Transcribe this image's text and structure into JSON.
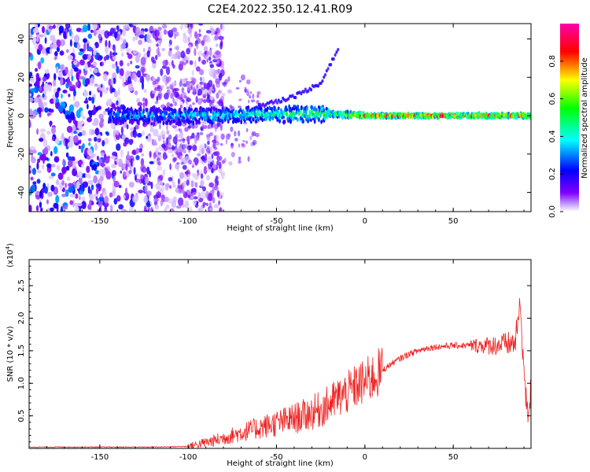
{
  "figure": {
    "title": "C2E4.2022.350.12.41.R09"
  },
  "chart_data": [
    {
      "type": "heatmap",
      "title": "C2E4.2022.350.12.41.R09",
      "xlabel": "Height of straight line (km)",
      "ylabel": "Frequency (Hz)",
      "xlim": [
        -190,
        94
      ],
      "ylim": [
        -50,
        48
      ],
      "x_ticks": [
        -150,
        -100,
        -50,
        0,
        50
      ],
      "y_ticks": [
        -40,
        -20,
        0,
        20,
        40
      ],
      "colorbar": {
        "label": "Normalized spectral amplitude",
        "range": [
          0,
          1
        ],
        "ticks": [
          "0.0",
          "0.2",
          "0.4",
          "0.6",
          "0.8"
        ],
        "colormap": [
          "#ffffff",
          "#8000ff",
          "#0000ff",
          "#00ffff",
          "#00ff00",
          "#ffff00",
          "#ff0000",
          "#ff00ff"
        ]
      },
      "ridge": {
        "description_values": "dominant frequency band near 0 Hz",
        "x": [
          -145,
          -100,
          -50,
          -20,
          0,
          50,
          94
        ],
        "frequency_hz": [
          0,
          0,
          1,
          1,
          0,
          0,
          0
        ],
        "peak_amplitude": [
          0.35,
          0.4,
          0.5,
          0.6,
          0.95,
          0.95,
          0.9
        ]
      },
      "branch": {
        "x": [
          -60,
          -40,
          -25,
          -15
        ],
        "frequency_hz": [
          5,
          10,
          17,
          35
        ]
      },
      "grid": false
    },
    {
      "type": "line",
      "xlabel": "Height of straight line (km)",
      "ylabel": "SNR (10 * v/v)",
      "y_multiplier": "(x10",
      "y_multiplier_exp": "4",
      "y_multiplier_close": ")",
      "xlim": [
        -190,
        94
      ],
      "ylim": [
        0,
        2.9
      ],
      "x_ticks": [
        -150,
        -100,
        -50,
        0,
        50
      ],
      "y_ticks": [
        0.5,
        1.0,
        1.5,
        2.0,
        2.5
      ],
      "color": "#ee2222",
      "series": [
        {
          "x": [
            -190,
            -150,
            -120,
            -100,
            -95,
            -85,
            -75,
            -65,
            -55,
            -45,
            -35,
            -25,
            -20,
            -15,
            -10,
            -5,
            0,
            5,
            10,
            15,
            20,
            25,
            30,
            35,
            40,
            50,
            60,
            70,
            80,
            85,
            88,
            90,
            91,
            92,
            94
          ],
          "values": [
            0.02,
            0.02,
            0.02,
            0.03,
            0.06,
            0.12,
            0.2,
            0.28,
            0.35,
            0.42,
            0.5,
            0.6,
            0.68,
            0.78,
            0.85,
            0.95,
            1.02,
            1.1,
            1.2,
            1.3,
            1.38,
            1.45,
            1.5,
            1.54,
            1.56,
            1.58,
            1.58,
            1.58,
            1.6,
            1.62,
            2.2,
            1.2,
            0.8,
            0.5,
            0.9
          ]
        }
      ],
      "grid": false
    }
  ]
}
